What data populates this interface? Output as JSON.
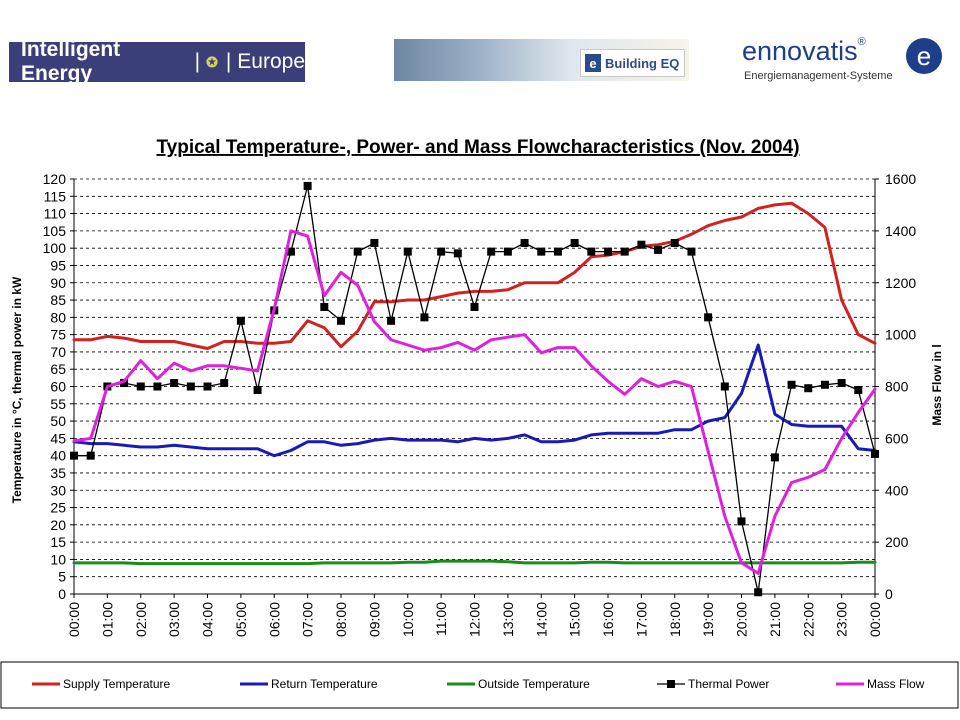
{
  "logos": {
    "intelligent_energy": {
      "text": "Intelligent Energy",
      "sep": "|",
      "stars": "✪",
      "region": "Europe"
    },
    "building_eq": {
      "mark": "e",
      "text": "Building EQ"
    },
    "ennovatis": {
      "name": "ennovatis",
      "reg": "®",
      "tagline": "Energiemanagement-Systeme",
      "mark": "e"
    }
  },
  "chart_data": {
    "type": "line",
    "title": "Typical Temperature-, Power- and Mass Flowcharacteristics (Nov. 2004)",
    "ylabel": "Temperature in °C, thermal power in kW",
    "y2label": "Mass Flow in l",
    "ylim": [
      0,
      120
    ],
    "y2lim": [
      0,
      1600
    ],
    "yticks": [
      0,
      5,
      10,
      15,
      20,
      25,
      30,
      35,
      40,
      45,
      50,
      55,
      60,
      65,
      70,
      75,
      80,
      85,
      90,
      95,
      100,
      105,
      110,
      115,
      120
    ],
    "y2ticks": [
      0,
      200,
      400,
      600,
      800,
      1000,
      1200,
      1400,
      1600
    ],
    "xticks": [
      "00:00",
      "01:00",
      "02:00",
      "03:00",
      "04:00",
      "05:00",
      "06:00",
      "07:00",
      "08:00",
      "09:00",
      "10:00",
      "11:00",
      "12:00",
      "13:00",
      "14:00",
      "15:00",
      "16:00",
      "17:00",
      "18:00",
      "19:00",
      "20:00",
      "21:00",
      "22:00",
      "23:00",
      "00:00"
    ],
    "x": [
      0,
      0.5,
      1,
      1.5,
      2,
      2.5,
      3,
      3.5,
      4,
      4.5,
      5,
      5.5,
      6,
      6.5,
      7,
      7.5,
      8,
      8.5,
      9,
      9.5,
      10,
      10.5,
      11,
      11.5,
      12,
      12.5,
      13,
      13.5,
      14,
      14.5,
      15,
      15.5,
      16,
      16.5,
      17,
      17.5,
      18,
      18.5,
      19,
      19.5,
      20,
      20.5,
      21,
      21.5,
      22,
      22.5,
      23,
      23.5,
      24
    ],
    "grid": "horizontal dashed",
    "legend_position": "bottom",
    "series": [
      {
        "name": "Supply Temperature",
        "color": "#d42020",
        "axis": "left",
        "marker": "none",
        "values": [
          73.5,
          73.5,
          74.5,
          74,
          73,
          73,
          73,
          72,
          71,
          73,
          73,
          72.5,
          72.5,
          73,
          79,
          77,
          71.5,
          76,
          84.5,
          84.5,
          85,
          85,
          86,
          87,
          87.5,
          87.5,
          88,
          90,
          90,
          90,
          93,
          97.5,
          98,
          99,
          100.5,
          101,
          102,
          104,
          106.5,
          108,
          109,
          111.5,
          112.5,
          113,
          110,
          106,
          85,
          75,
          72.5
        ]
      },
      {
        "name": "Return Temperature",
        "color": "#1a1ab8",
        "axis": "left",
        "marker": "none",
        "values": [
          44,
          43.5,
          43.5,
          43,
          42.5,
          42.5,
          43,
          42.5,
          42,
          42,
          42,
          42,
          40,
          41.5,
          44,
          44,
          43,
          43.5,
          44.5,
          45,
          44.5,
          44.5,
          44.5,
          44,
          45,
          44.5,
          45,
          46,
          44,
          44,
          44.5,
          46,
          46.5,
          46.5,
          46.5,
          46.5,
          47.5,
          47.5,
          50,
          51,
          58,
          72,
          52,
          49,
          48.5,
          48.5,
          48.5,
          42,
          41.5
        ]
      },
      {
        "name": "Outside Temperature",
        "color": "#1a8c1a",
        "axis": "left",
        "marker": "none",
        "values": [
          9,
          9,
          9,
          9,
          8.8,
          8.8,
          8.8,
          8.8,
          8.8,
          8.8,
          8.8,
          8.8,
          8.8,
          8.8,
          8.8,
          9,
          9,
          9,
          9,
          9,
          9.2,
          9.2,
          9.5,
          9.5,
          9.5,
          9.5,
          9.3,
          9,
          9,
          9,
          9,
          9.2,
          9.2,
          9,
          9,
          9,
          9,
          9,
          9,
          9,
          9,
          9,
          9,
          9,
          9,
          9,
          9,
          9.2,
          9.2
        ]
      },
      {
        "name": "Thermal Power",
        "color": "#000000",
        "axis": "left",
        "marker": "square",
        "values": [
          40,
          40,
          60,
          61,
          60,
          60,
          61,
          60,
          60,
          61,
          79,
          59,
          82,
          99,
          118,
          83,
          79,
          99,
          101.5,
          79,
          99,
          80,
          99,
          98.5,
          83,
          99,
          99,
          101.5,
          99,
          99,
          101.5,
          99,
          99,
          99,
          101,
          99.5,
          101.5,
          99,
          80,
          60,
          21,
          0.5,
          39.5,
          60.5,
          59.5,
          60.5,
          61,
          59,
          40.5
        ]
      },
      {
        "name": "Mass Flow",
        "color": "#e020e0",
        "axis": "right",
        "marker": "none",
        "values": [
          590,
          600,
          800,
          820,
          900,
          830,
          890,
          860,
          880,
          880,
          870,
          860,
          1100,
          1400,
          1380,
          1150,
          1240,
          1190,
          1050,
          980,
          960,
          940,
          950,
          970,
          940,
          980,
          990,
          1000,
          930,
          950,
          950,
          880,
          820,
          770,
          830,
          800,
          820,
          800,
          550,
          300,
          120,
          80,
          300,
          430,
          450,
          480,
          600,
          700,
          790
        ]
      }
    ]
  }
}
